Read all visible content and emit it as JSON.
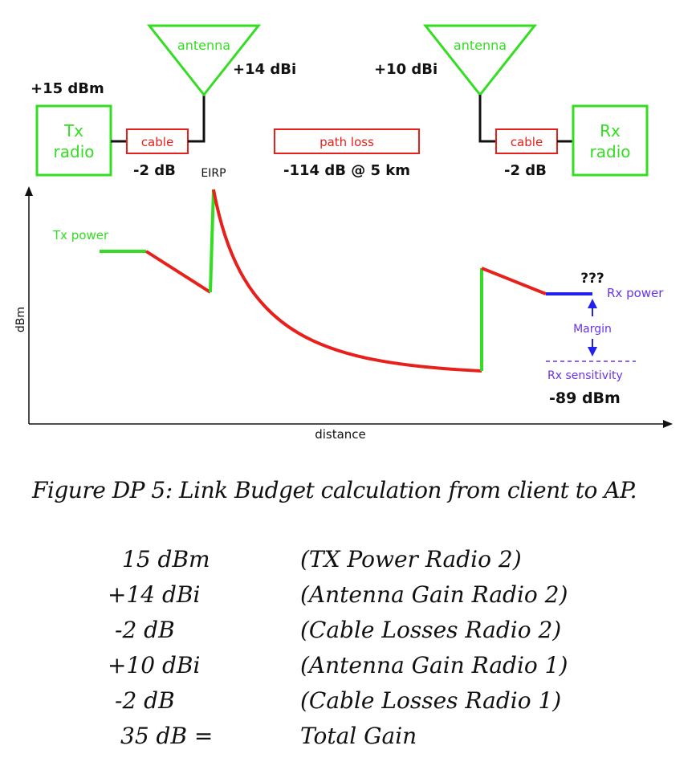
{
  "diagram": {
    "tx_power": "+15 dBm",
    "tx_radio": [
      "Tx",
      "radio"
    ],
    "tx_cable": "cable",
    "tx_cable_loss": "-2 dB",
    "tx_antenna": "antenna",
    "tx_antenna_gain": "+14 dBi",
    "eirp": "EIRP",
    "path_loss_box": "path loss",
    "path_loss": "-114 dB @ 5 km",
    "rx_antenna": "antenna",
    "rx_antenna_gain": "+10 dBi",
    "rx_cable": "cable",
    "rx_cable_loss": "-2 dB",
    "rx_radio": [
      "Rx",
      "radio"
    ]
  },
  "graph": {
    "ylabel": "dBm",
    "xlabel": "distance",
    "tx_power_label": "Tx power",
    "unknown": "???",
    "rx_power_label": "Rx power",
    "margin_label": "Margin",
    "rx_sensitivity_label": "Rx sensitivity",
    "rx_sensitivity_value": "-89 dBm"
  },
  "colors": {
    "green": "#33dd22",
    "red": "#e8201c",
    "blue": "#2222ee",
    "purple": "#6633ee",
    "black": "#111111"
  },
  "caption": "Figure DP 5: Link Budget calculation from client to AP.",
  "budget": [
    {
      "value": "15 dBm",
      "desc": "(TX Power Radio 2)"
    },
    {
      "value": "+14 dBi",
      "desc": "(Antenna Gain Radio 2)"
    },
    {
      "value": "-2 dB",
      "desc": "(Cable Losses Radio 2)"
    },
    {
      "value": "+10 dBi",
      "desc": "(Antenna Gain Radio 1)"
    },
    {
      "value": "-2 dB",
      "desc": "(Cable Losses Radio 1)"
    },
    {
      "value": "35 dB =",
      "desc": "Total Gain"
    }
  ]
}
